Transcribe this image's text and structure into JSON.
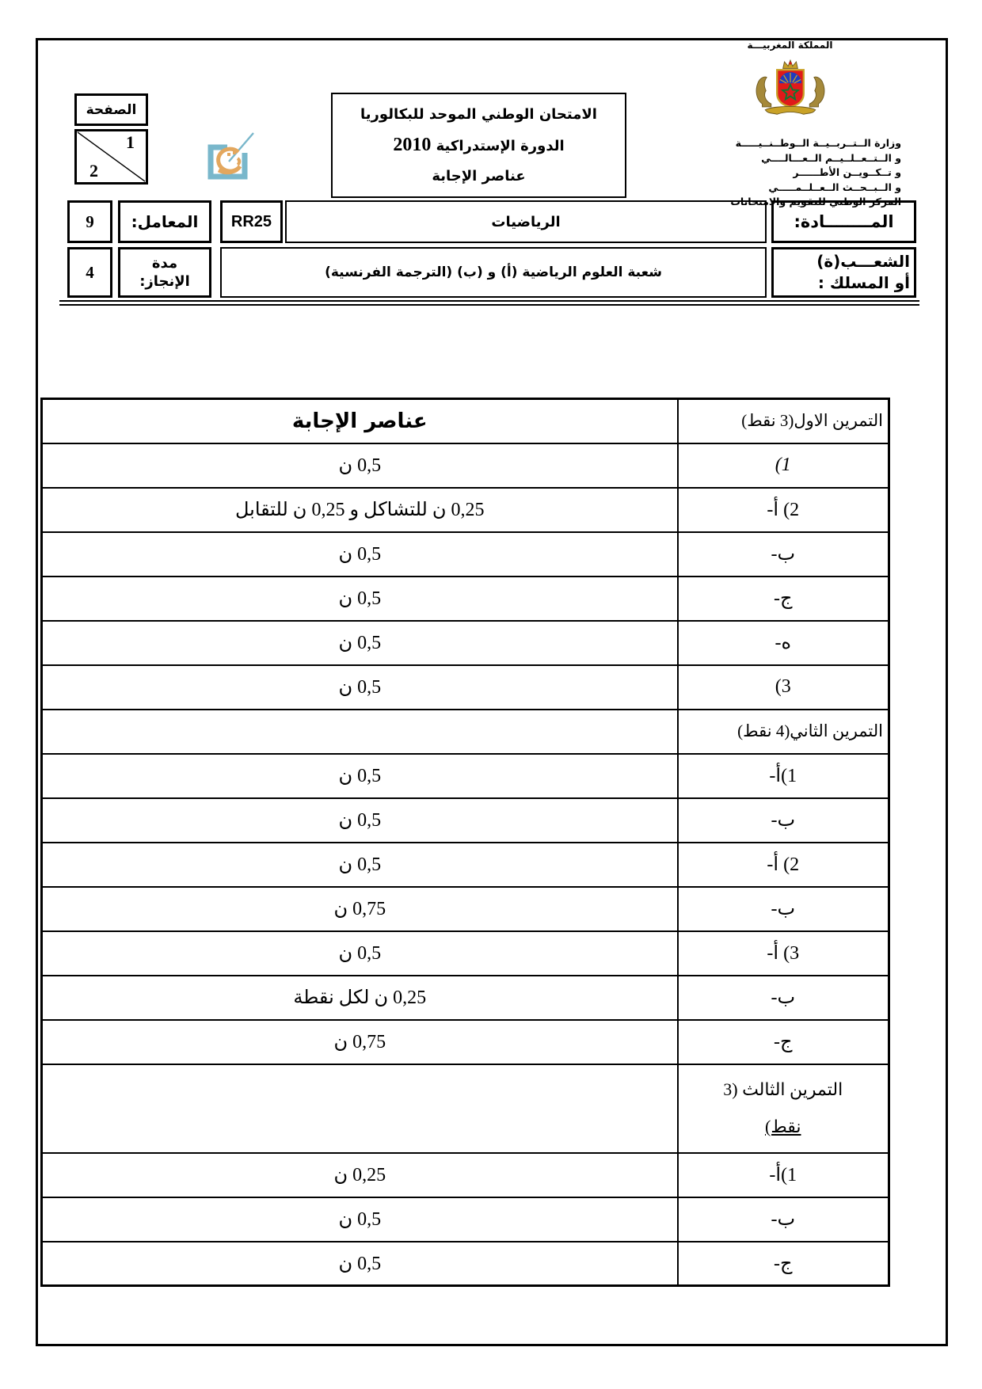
{
  "kingdom_title": "المملكة المغربيـــة",
  "ministry": {
    "lines": [
      "وزارة الــتــربــيــة الــوطــنــيـــــة",
      "و الــتــعــلــيــم الــعـــالــــي",
      "و تــكــويــن الأطــــــر",
      "و الــبــحــث الــعــلــمـــــي",
      "المركز الوطني للتقويم والامتحانات"
    ]
  },
  "page_box": {
    "label": "الصفحة",
    "page_number": "1",
    "total_pages": "2"
  },
  "exam_box": {
    "line1": "الامتحان الوطني الموحد للبكالوريا",
    "line2_text": "الدورة الإستدراكية",
    "line2_year": "2010",
    "line3": "عناصر الإجابة"
  },
  "info": {
    "subject_label": "المــــــــادة:",
    "subject_value": "الرياضيات",
    "exam_code": "RR25",
    "coefficient_label": "المعامل:",
    "coefficient_value": "9",
    "branch_label_line1": "الشعـــب(ة)",
    "branch_label_line2": "أو المسلك :",
    "branch_value": "شعبة العلوم الرياضية (أ) و (ب) (الترجمة الفرنسية)",
    "duration_label_line1": "مدة",
    "duration_label_line2": "الإنجاز:",
    "duration_value": "4"
  },
  "answer_table": {
    "header_answer": "عناصر الإجابة",
    "header_exercise": "التمرين الاول(3 نقط)",
    "rows": [
      {
        "label": "1)",
        "answer": "0,5  ن",
        "label_style": "italic"
      },
      {
        "label": "2) أ-",
        "answer": "0,25 ن للتشاكل و 0,25 ن للتقابل"
      },
      {
        "label": "ب-",
        "answer": "0,5 ن"
      },
      {
        "label": "ج-",
        "answer": "0,5 ن"
      },
      {
        "label": "ه-",
        "answer": "0,5 ن"
      },
      {
        "label": "3)",
        "answer": "0,5 ن"
      },
      {
        "label": "التمرين الثاني(4 نقط)",
        "answer": "",
        "type": "section"
      },
      {
        "label": "1)أ-",
        "answer": "0,5 ن"
      },
      {
        "label": "ب-",
        "answer": "0,5 ن"
      },
      {
        "label": "2) أ-",
        "answer": "0,5 ن"
      },
      {
        "label": "ب-",
        "answer": "0,75 ن"
      },
      {
        "label": "3) أ-",
        "answer": "0,5 ن"
      },
      {
        "label": "ب-",
        "answer": "0,25 ن لكل نقطة"
      },
      {
        "label": "ج-",
        "answer": "0,75 ن"
      },
      {
        "label_line1": "التمرين الثالث (3",
        "label_line2": "نقط)",
        "answer": "",
        "type": "section2"
      },
      {
        "label": "1)أ-",
        "answer": "0,25 ن"
      },
      {
        "label": "ب-",
        "answer": "0,5 ن"
      },
      {
        "label": "ج-",
        "answer": "0,5 ن"
      }
    ]
  }
}
